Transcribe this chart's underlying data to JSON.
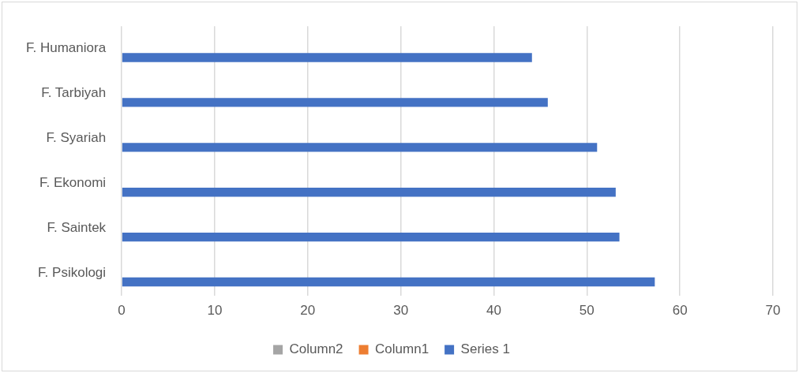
{
  "chart_data": {
    "type": "bar",
    "orientation": "horizontal",
    "categories": [
      "F. Humaniora",
      "F. Tarbiyah",
      "F. Syariah",
      "F. Ekonomi",
      "F. Saintek",
      "F. Psikologi"
    ],
    "series": [
      {
        "name": "Column2",
        "color": "#a5a5a5",
        "values": [
          null,
          null,
          null,
          null,
          null,
          null
        ]
      },
      {
        "name": "Column1",
        "color": "#ed7d31",
        "values": [
          null,
          null,
          null,
          null,
          null,
          null
        ]
      },
      {
        "name": "Series 1",
        "color": "#4472c4",
        "values": [
          44.1,
          45.8,
          51.1,
          53.1,
          53.5,
          57.3
        ]
      }
    ],
    "xlim": [
      0,
      70
    ],
    "xticks": [
      0,
      10,
      20,
      30,
      40,
      50,
      60,
      70
    ],
    "grid": "x",
    "legend": "bottom"
  }
}
